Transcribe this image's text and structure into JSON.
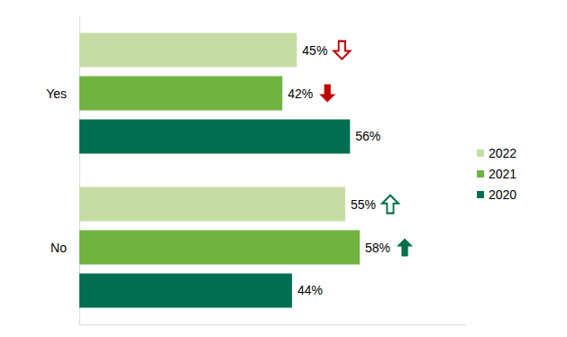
{
  "chart_data": {
    "type": "bar",
    "orientation": "horizontal",
    "categories": [
      "Yes",
      "No"
    ],
    "series": [
      {
        "name": "2022",
        "color": "#c5dda4",
        "values": [
          45,
          55
        ],
        "value_labels": [
          "45%",
          "55%"
        ]
      },
      {
        "name": "2021",
        "color": "#70b340",
        "values": [
          42,
          58
        ],
        "value_labels": [
          "42%",
          "58%"
        ]
      },
      {
        "name": "2020",
        "color": "#006f51",
        "values": [
          56,
          44
        ],
        "value_labels": [
          "56%",
          "44%"
        ]
      }
    ],
    "xlim": [
      0,
      80
    ],
    "xticks": [
      0
    ],
    "tick_labels": "y",
    "grid": false,
    "legend": "right",
    "data_labels": true
  }
}
